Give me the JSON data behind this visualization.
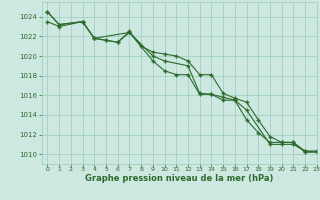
{
  "title": "Graphe pression niveau de la mer (hPa)",
  "bg_color": "#cce8e0",
  "grid_color": "#99ccbb",
  "line_color": "#2d6a2d",
  "xlim": [
    -0.5,
    23
  ],
  "ylim": [
    1009.0,
    1025.5
  ],
  "yticks": [
    1010,
    1012,
    1014,
    1016,
    1018,
    1020,
    1022,
    1024
  ],
  "xticks": [
    0,
    1,
    2,
    3,
    4,
    5,
    6,
    7,
    8,
    9,
    10,
    11,
    12,
    13,
    14,
    15,
    16,
    17,
    18,
    19,
    20,
    21,
    22,
    23
  ],
  "series1": {
    "x": [
      0,
      1,
      3,
      4,
      5,
      6,
      7,
      8,
      9,
      10,
      11,
      12,
      13,
      14,
      15,
      16,
      17,
      18,
      19,
      20,
      21,
      22,
      23
    ],
    "y": [
      1024.5,
      1023.2,
      1023.5,
      1021.8,
      1021.6,
      1021.4,
      1022.5,
      1021.0,
      1020.4,
      1020.2,
      1020.0,
      1019.5,
      1018.1,
      1018.1,
      1016.2,
      1015.7,
      1015.3,
      1013.5,
      1011.8,
      1011.2,
      1011.2,
      1010.3,
      1010.3
    ]
  },
  "series2": {
    "x": [
      0,
      1,
      3,
      4,
      7,
      9,
      10,
      12,
      13,
      14,
      15,
      16,
      17,
      18,
      19,
      20,
      21,
      22,
      23
    ],
    "y": [
      1023.5,
      1023.0,
      1023.5,
      1021.8,
      1022.4,
      1020.0,
      1019.5,
      1019.0,
      1016.2,
      1016.1,
      1015.5,
      1015.5,
      1013.5,
      1012.2,
      1011.2,
      1011.2,
      1011.2,
      1010.2,
      1010.2
    ]
  },
  "series3": {
    "x": [
      0,
      1,
      3,
      4,
      5,
      6,
      7,
      9,
      10,
      11,
      12,
      13,
      14,
      15,
      16,
      17,
      19,
      20,
      21,
      22,
      23
    ],
    "y": [
      1024.5,
      1023.2,
      1023.5,
      1021.8,
      1021.6,
      1021.4,
      1022.4,
      1019.5,
      1018.5,
      1018.1,
      1018.1,
      1016.1,
      1016.1,
      1015.8,
      1015.5,
      1014.5,
      1011.0,
      1011.0,
      1011.0,
      1010.3,
      1010.3
    ]
  }
}
